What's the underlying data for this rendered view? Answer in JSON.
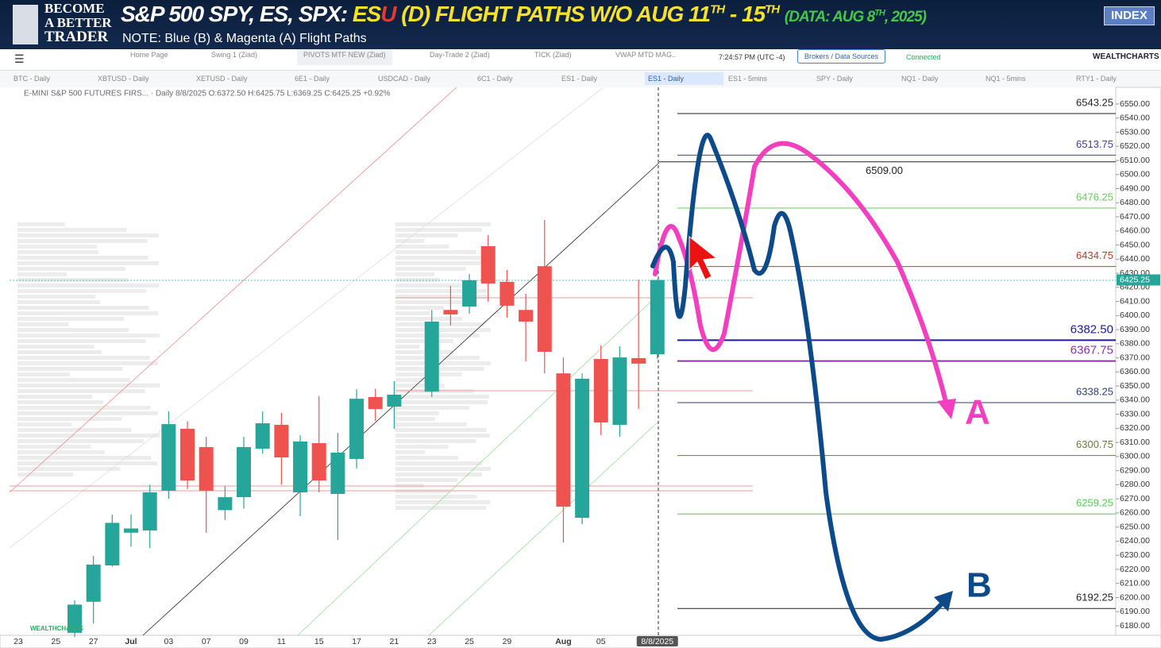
{
  "header": {
    "logo": [
      "BECOME",
      "A BETTER",
      "TRADER"
    ],
    "title_prefix": "S&P 500 SPY, ES, SPX:",
    "flight": [
      "ES",
      "U",
      " (D) FLIGHT PATHS W/O AUG 11",
      "TH",
      " - 15",
      "TH"
    ],
    "data_note": [
      "(DATA: AUG 8",
      "TH",
      ", 2025)"
    ],
    "note": "NOTE: Blue (B) & Magenta (A) Flight Paths",
    "button": "INDEX"
  },
  "toolbar": {
    "tabs": [
      "Home Page",
      "Swing 1 (Ziad)",
      "PIVOTS MTF NEW (Ziad)",
      "Day-Trade 2 (Ziad)",
      "TICK (Ziad)",
      "VWAP MTD MAG.."
    ],
    "time": "7:24:57 PM  (UTC -4)",
    "brokers": "Brokers / Data Sources",
    "status": "Connected",
    "brand": "WEALTHCHARTS"
  },
  "symbols": [
    "BTC - Daily",
    "XBTUSD - Daily",
    "XETUSD - Daily",
    "6E1 - Daily",
    "USDCAD - Daily",
    "6C1 - Daily",
    "ES1 - Daily",
    "ES1 - Daily",
    "ES1 - 5mins",
    "SPY - Daily",
    "NQ1 - Daily",
    "NQ1 - 5mins",
    "RTY1 - Daily"
  ],
  "chart": {
    "legend": "E-MINI S&P 500 FUTURES FIRS... · Daily  8/8/2025 O:6372.50 H:6425.75 L:6369.25 C:6425.25 +0.92%",
    "ylim": [
      6180,
      6550
    ],
    "yticks": [
      {
        "value": 6550,
        "label": "6550.00"
      },
      {
        "value": 6540,
        "label": "6540.00"
      },
      {
        "value": 6530,
        "label": "6530.00"
      },
      {
        "value": 6520,
        "label": "6520.00"
      },
      {
        "value": 6510,
        "label": "6510.00"
      },
      {
        "value": 6500,
        "label": "6500.00"
      },
      {
        "value": 6490,
        "label": "6490.00"
      },
      {
        "value": 6480,
        "label": "6480.00"
      },
      {
        "value": 6470,
        "label": "6470.00"
      },
      {
        "value": 6460,
        "label": "6460.00"
      },
      {
        "value": 6450,
        "label": "6450.00"
      },
      {
        "value": 6440,
        "label": "6440.00"
      },
      {
        "value": 6430,
        "label": "6430.00"
      },
      {
        "value": 6420,
        "label": "6420.00"
      },
      {
        "value": 6410,
        "label": "6410.00"
      },
      {
        "value": 6400,
        "label": "6400.00"
      },
      {
        "value": 6390,
        "label": "6390.00"
      },
      {
        "value": 6380,
        "label": "6380.00"
      },
      {
        "value": 6370,
        "label": "6370.00"
      },
      {
        "value": 6360,
        "label": "6360.00"
      },
      {
        "value": 6350,
        "label": "6350.00"
      },
      {
        "value": 6340,
        "label": "6340.00"
      },
      {
        "value": 6330,
        "label": "6330.00"
      },
      {
        "value": 6320,
        "label": "6320.00"
      },
      {
        "value": 6310,
        "label": "6310.00"
      },
      {
        "value": 6300,
        "label": "6300.00"
      },
      {
        "value": 6290,
        "label": "6290.00"
      },
      {
        "value": 6280,
        "label": "6280.00"
      },
      {
        "value": 6270,
        "label": "6270.00"
      },
      {
        "value": 6260,
        "label": "6260.00"
      },
      {
        "value": 6250,
        "label": "6250.00"
      },
      {
        "value": 6240,
        "label": "6240.00"
      },
      {
        "value": 6230,
        "label": "6230.00"
      },
      {
        "value": 6220,
        "label": "6220.00"
      },
      {
        "value": 6210,
        "label": "6210.00"
      },
      {
        "value": 6200,
        "label": "6200.00"
      },
      {
        "value": 6190,
        "label": "6190.00"
      },
      {
        "value": 6180,
        "label": "6180.00"
      }
    ],
    "xlabels": [
      "23",
      "25",
      "27",
      "Jul",
      "03",
      "07",
      "09",
      "11",
      "15",
      "17",
      "21",
      "23",
      "25",
      "29",
      "Aug",
      "05",
      "8/8/2025"
    ],
    "up_color": "#26a69a",
    "down_color": "#ef5350",
    "candles": [
      {
        "o": 6175,
        "h": 6198,
        "l": 6172,
        "c": 6195
      },
      {
        "o": 6197,
        "h": 6229.6,
        "l": 6181.7,
        "c": 6223.4
      },
      {
        "o": 6222.8,
        "h": 6258.8,
        "l": 6222,
        "c": 6253
      },
      {
        "o": 6246,
        "h": 6259,
        "l": 6236,
        "c": 6249
      },
      {
        "o": 6247.6,
        "h": 6280,
        "l": 6235,
        "c": 6274.6
      },
      {
        "o": 6275.8,
        "h": 6332,
        "l": 6270,
        "c": 6323
      },
      {
        "o": 6319.7,
        "h": 6325,
        "l": 6277,
        "c": 6283
      },
      {
        "o": 6306.7,
        "h": 6314,
        "l": 6246,
        "c": 6275.8
      },
      {
        "o": 6262,
        "h": 6279,
        "l": 6255,
        "c": 6271.2
      },
      {
        "o": 6271.2,
        "h": 6314,
        "l": 6263,
        "c": 6306.7
      },
      {
        "o": 6305.6,
        "h": 6332,
        "l": 6302,
        "c": 6323.6
      },
      {
        "o": 6322.5,
        "h": 6331,
        "l": 6280,
        "c": 6299.4
      },
      {
        "o": 6274.6,
        "h": 6315,
        "l": 6257.7,
        "c": 6310.7
      },
      {
        "o": 6309.5,
        "h": 6343,
        "l": 6274.6,
        "c": 6283
      },
      {
        "o": 6273.5,
        "h": 6316.8,
        "l": 6240.8,
        "c": 6302.8
      },
      {
        "o": 6298.3,
        "h": 6347.8,
        "l": 6291.5,
        "c": 6341
      },
      {
        "o": 6342.2,
        "h": 6348,
        "l": 6325.3,
        "c": 6333.7
      },
      {
        "o": 6335.4,
        "h": 6353.5,
        "l": 6319.7,
        "c": 6343.9
      },
      null,
      {
        "o": 6346,
        "h": 6404,
        "l": 6342.2,
        "c": 6395.7
      },
      {
        "o": 6404,
        "h": 6421,
        "l": 6392.9,
        "c": 6400.8
      },
      {
        "o": 6406.4,
        "h": 6429.5,
        "l": 6401.3,
        "c": 6425
      },
      {
        "o": 6449.2,
        "h": 6457,
        "l": 6409.8,
        "c": 6422.7
      },
      {
        "o": 6423.9,
        "h": 6432.3,
        "l": 6398.5,
        "c": 6407
      },
      {
        "o": 6404,
        "h": 6415.4,
        "l": 6367.5,
        "c": 6395.7
      },
      {
        "o": 6435,
        "h": 6467.8,
        "l": 6359,
        "c": 6374.3
      },
      {
        "o": 6359,
        "h": 6370.3,
        "l": 6239,
        "c": 6264.5
      },
      {
        "o": 6256.6,
        "h": 6359,
        "l": 6252,
        "c": 6355.2
      },
      {
        "o": 6369.2,
        "h": 6378.8,
        "l": 6315.2,
        "c": 6324.2
      },
      {
        "o": 6322.5,
        "h": 6378.2,
        "l": 6314,
        "c": 6370.3
      },
      {
        "o": 6369.8,
        "h": 6425.5,
        "l": 6333.7,
        "c": 6365.9
      },
      {
        "o": 6372.5,
        "h": 6425.75,
        "l": 6369.25,
        "c": 6425.25
      }
    ],
    "levels": [
      {
        "price": 6543.25,
        "color": "#222222"
      },
      {
        "price": 6513.75,
        "color": "#3d3d9e"
      },
      {
        "price": {
          "value": 6509,
          "label": "6509.00"
        },
        "color": "#222222"
      },
      {
        "price": 6476.25,
        "color": "#66cc55"
      },
      {
        "price": 6434.75,
        "color": "#c0392b"
      },
      {
        "price": {
          "value": 6382.5,
          "label": "6382.50"
        },
        "color": "#1a1aa0"
      },
      {
        "price": 6367.75,
        "color": "#8e2fb3"
      },
      {
        "price": 6338.25,
        "color": "#2c3e70"
      },
      {
        "price": 6300.75,
        "color": "#6b7a3a"
      },
      {
        "price": 6259.25,
        "color": "#4fcf4f"
      },
      {
        "price": 6192.25,
        "color": "#222222"
      }
    ],
    "path_labels": [
      "A",
      "B"
    ],
    "watermark": "WEALTHCHARTS"
  }
}
